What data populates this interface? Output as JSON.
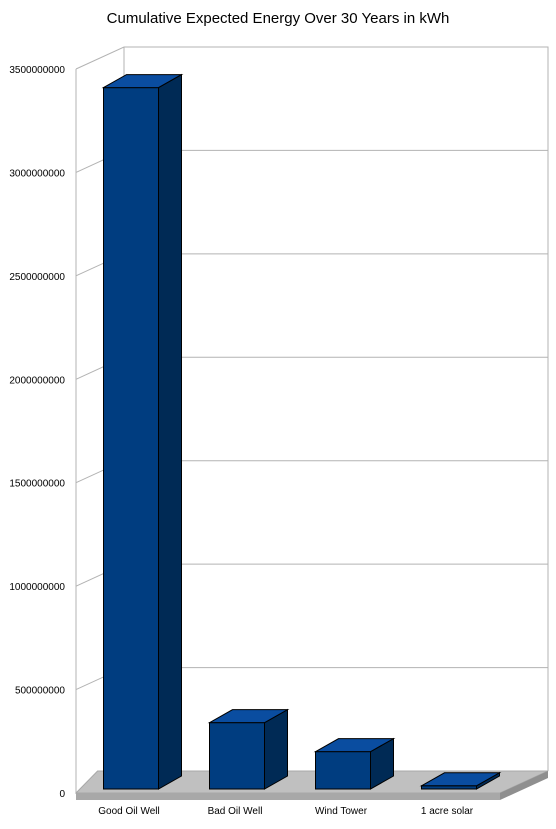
{
  "chart_data": {
    "type": "bar",
    "title": "Cumulative Expected Energy Over 30 Years in kWh",
    "xlabel": "",
    "ylabel": "",
    "categories": [
      "Good Oil Well",
      "Bad Oil Well",
      "Wind Tower",
      "1 acre solar"
    ],
    "values": [
      3410000000,
      340000000,
      200000000,
      35000000
    ],
    "ylim": [
      0,
      3500000000
    ],
    "yticks": [
      "0",
      "500000000",
      "1000000000",
      "1500000000",
      "2000000000",
      "2500000000",
      "3000000000",
      "3500000000"
    ],
    "grid": true,
    "legend": "none",
    "three_d": true,
    "colors": {
      "bar_front": "#003d80",
      "bar_top": "#0a4da0",
      "bar_side": "#002a55",
      "floor": "#c0c0c0",
      "floor_edge": "#a8a8a8",
      "grid": "#b3b3b3",
      "wall_edge": "#b3b3b3"
    }
  }
}
